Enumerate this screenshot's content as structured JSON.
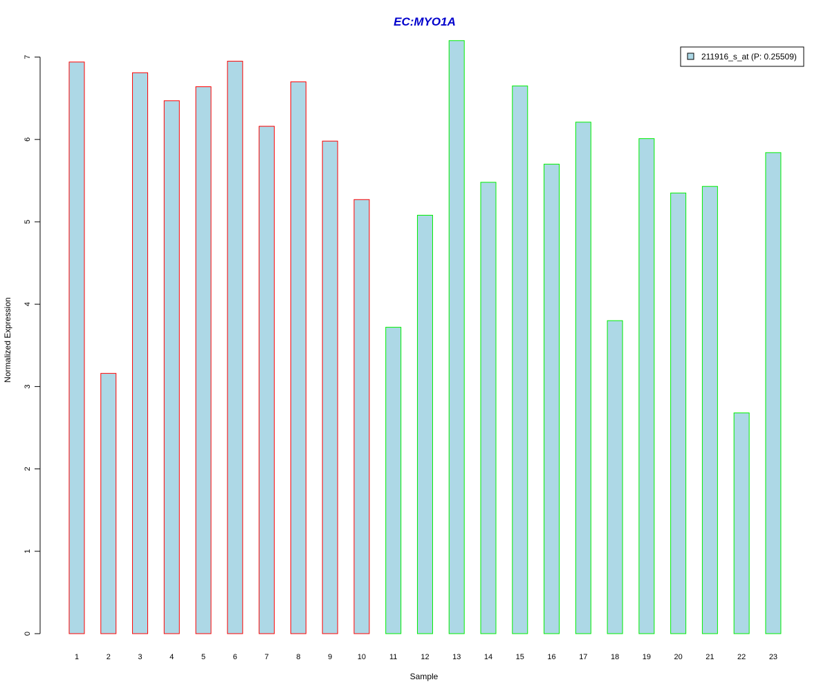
{
  "chart_data": {
    "type": "bar",
    "title": "EC:MYO1A",
    "xlabel": "Sample",
    "ylabel": "Normalized Expression",
    "categories": [
      "1",
      "2",
      "3",
      "4",
      "5",
      "6",
      "7",
      "8",
      "9",
      "10",
      "11",
      "12",
      "13",
      "14",
      "15",
      "16",
      "17",
      "18",
      "19",
      "20",
      "21",
      "22",
      "23"
    ],
    "series": [
      {
        "name": "211916_s_at (P: 0.25509)",
        "values": [
          6.94,
          3.16,
          6.81,
          6.47,
          6.64,
          6.95,
          6.16,
          6.7,
          5.98,
          5.27,
          3.72,
          5.08,
          7.2,
          5.48,
          6.65,
          5.7,
          6.21,
          3.8,
          6.01,
          5.35,
          5.43,
          2.68,
          5.84
        ]
      }
    ],
    "groups": [
      {
        "samples": [
          1,
          2,
          3,
          4,
          5,
          6,
          7,
          8,
          9,
          10
        ],
        "border_color": "#ff0000"
      },
      {
        "samples": [
          11,
          12,
          13,
          14,
          15,
          16,
          17,
          18,
          19,
          20,
          21,
          22,
          23
        ],
        "border_color": "#00ee00"
      }
    ],
    "yticks": [
      0,
      1,
      2,
      3,
      4,
      5,
      6,
      7
    ],
    "ylim": [
      0,
      7.25
    ],
    "grid": false,
    "legend_position": "top-right",
    "colors": {
      "bar_fill": "#add8e6",
      "title": "#0000cc",
      "axis": "#000000"
    }
  }
}
